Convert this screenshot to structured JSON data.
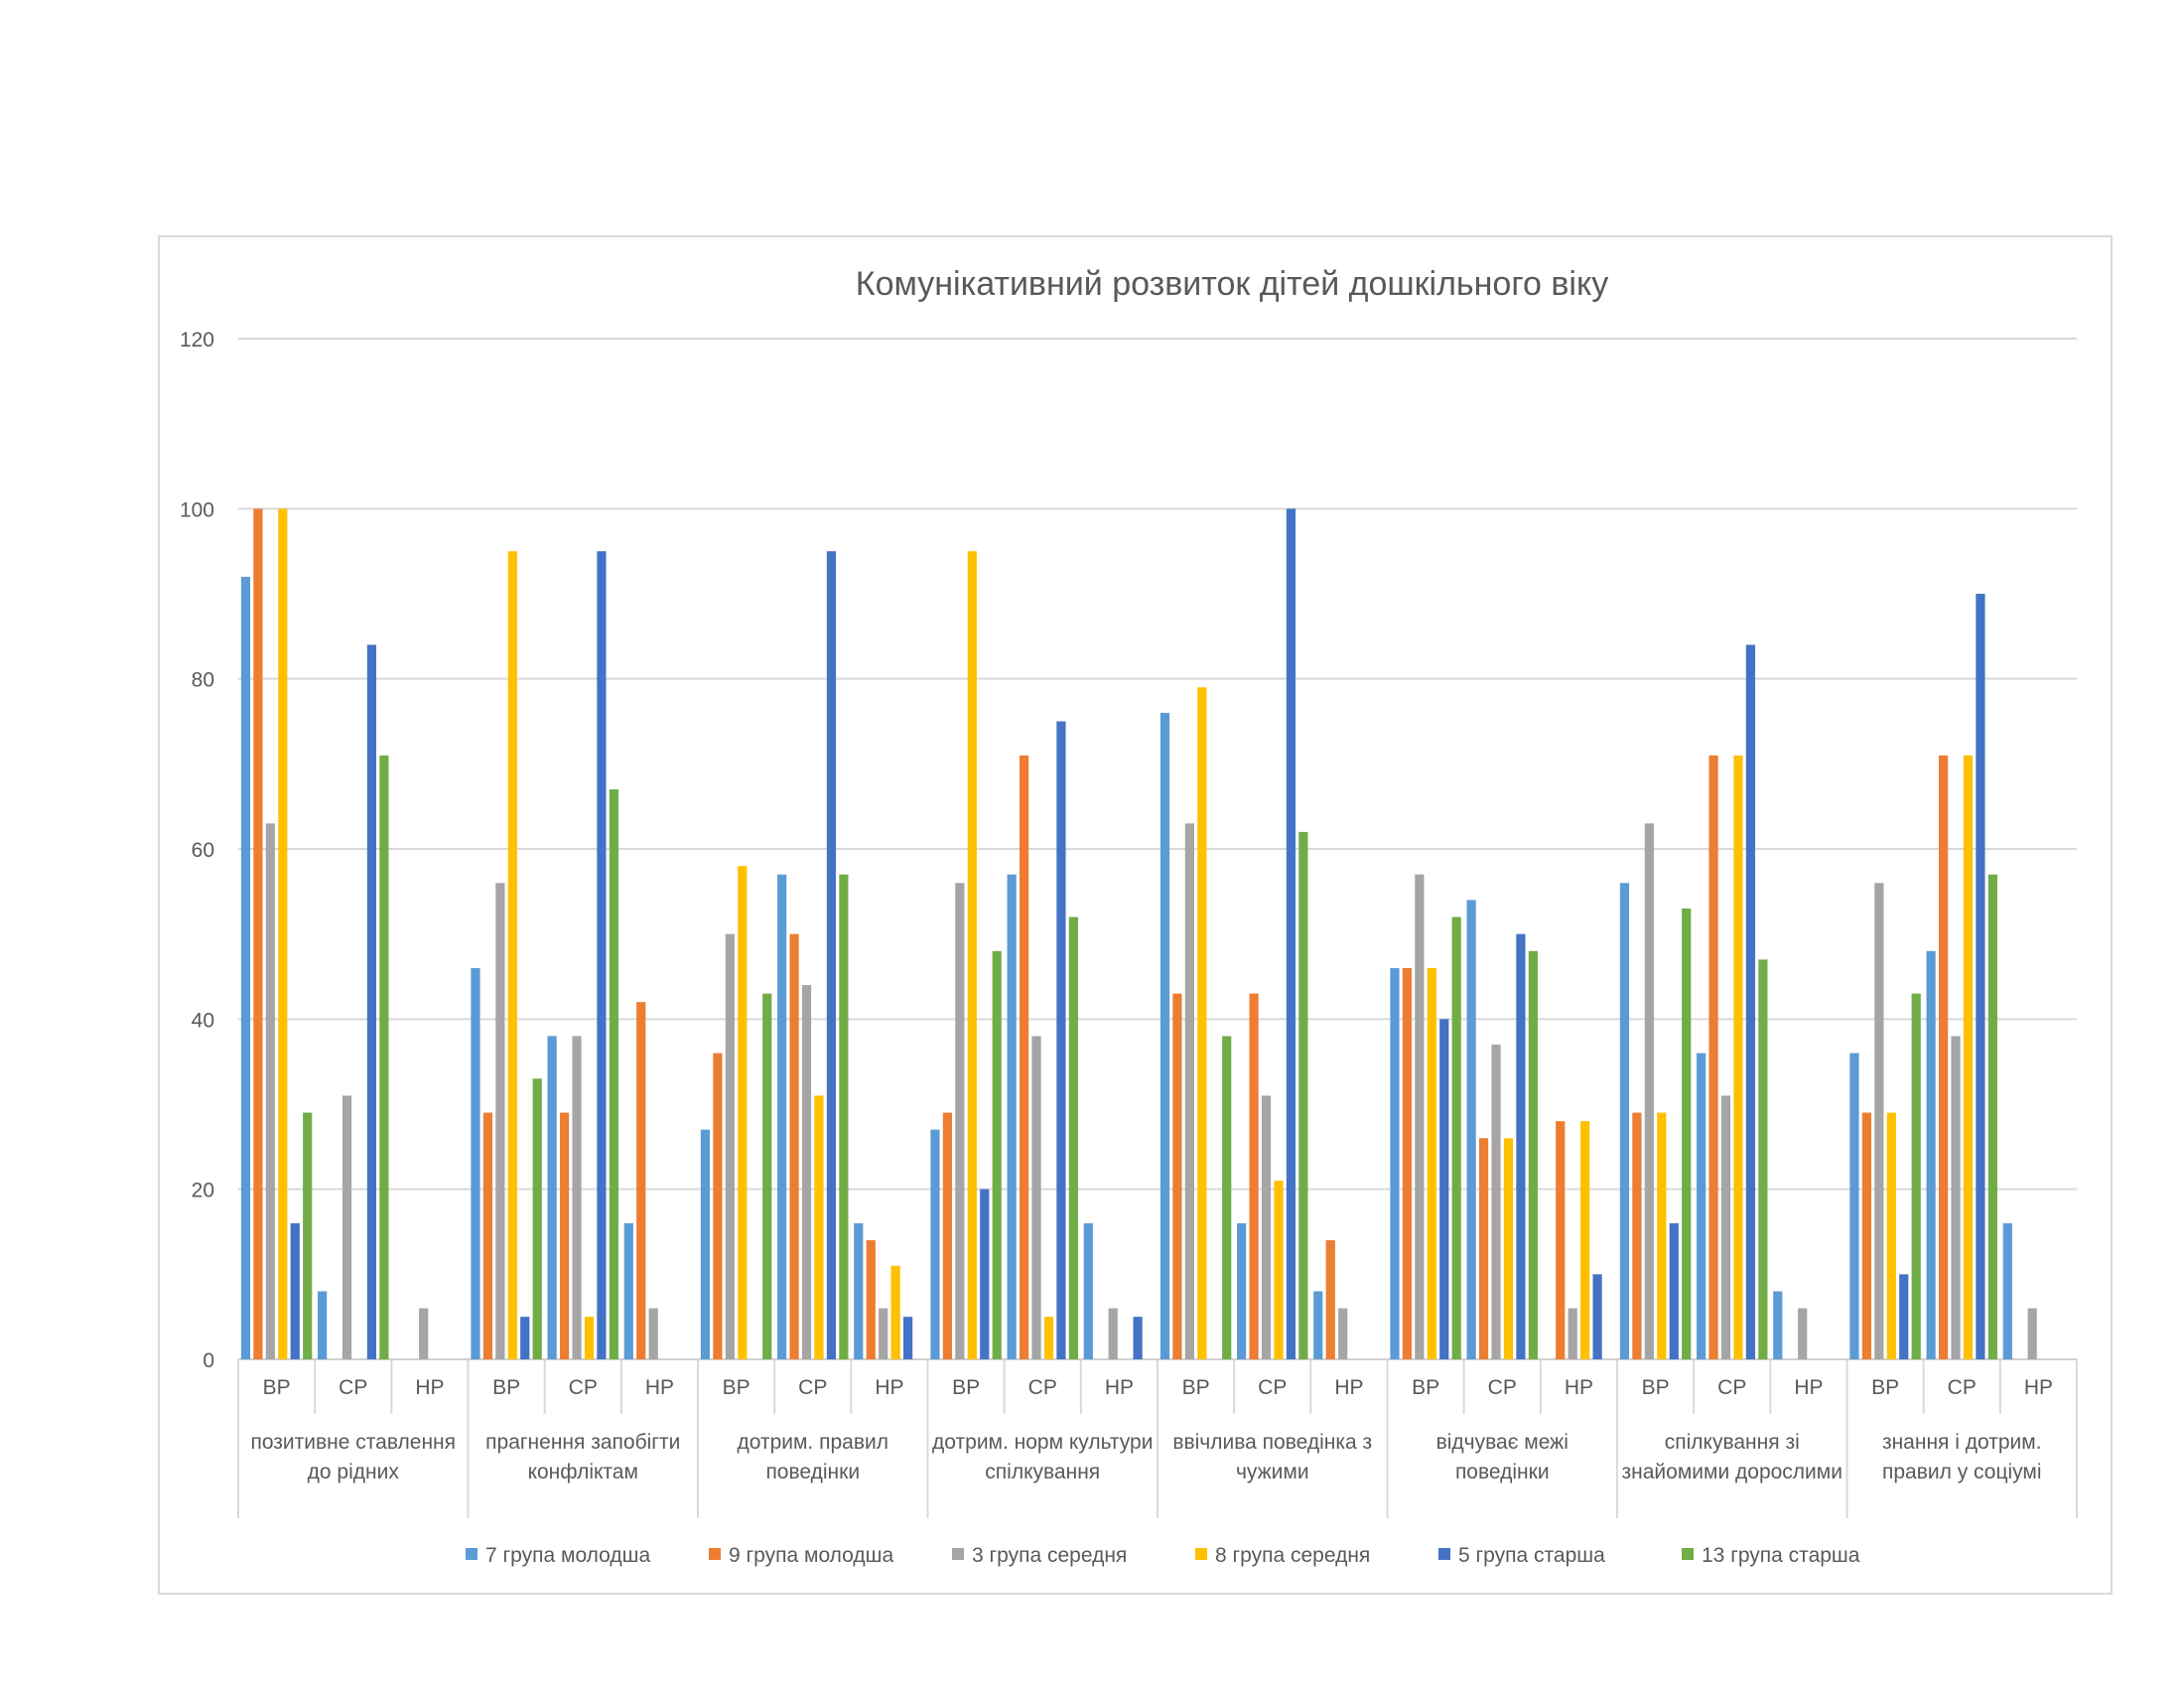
{
  "chart_data": {
    "type": "bar",
    "title": "Комунікативний розвиток дітей дошкільного віку",
    "xlabel": "",
    "ylabel": "",
    "ylim": [
      0,
      120
    ],
    "yticks": [
      0,
      20,
      40,
      60,
      80,
      100,
      120
    ],
    "grid": true,
    "legend_position": "bottom",
    "groups": [
      "позитивне ставлення до рідних",
      "прагнення запобігти конфліктам",
      "дотрим. правил поведінки",
      "дотрим. норм культури спілкування",
      "ввічлива поведінка з чужими",
      "відчуває межі поведінки",
      "спілкування зі знайомими дорослими",
      "знання і дотрим. правил у соціумі"
    ],
    "levels": [
      "ВР",
      "СР",
      "НР"
    ],
    "series": [
      {
        "name": "7 група молодша",
        "color": "#5B9BD5",
        "values": [
          92,
          8,
          0,
          46,
          38,
          16,
          27,
          57,
          16,
          27,
          57,
          16,
          76,
          16,
          8,
          46,
          54,
          0,
          56,
          36,
          8,
          36,
          48,
          16
        ]
      },
      {
        "name": "9 група молодша",
        "color": "#ED7D31",
        "values": [
          100,
          0,
          0,
          29,
          29,
          42,
          36,
          50,
          14,
          29,
          71,
          0,
          43,
          43,
          14,
          46,
          26,
          28,
          29,
          71,
          0,
          29,
          71,
          0
        ]
      },
      {
        "name": "3 група середня",
        "color": "#A5A5A5",
        "values": [
          63,
          31,
          6,
          56,
          38,
          6,
          50,
          44,
          6,
          56,
          38,
          6,
          63,
          31,
          6,
          57,
          37,
          6,
          63,
          31,
          6,
          56,
          38,
          6
        ]
      },
      {
        "name": "8 група середня",
        "color": "#FFC000",
        "values": [
          100,
          0,
          0,
          95,
          5,
          0,
          58,
          31,
          11,
          95,
          5,
          0,
          79,
          21,
          0,
          46,
          26,
          28,
          29,
          71,
          0,
          29,
          71,
          0
        ]
      },
      {
        "name": "5 група старша",
        "color": "#4472C4",
        "values": [
          16,
          84,
          0,
          5,
          95,
          0,
          0,
          95,
          5,
          20,
          75,
          5,
          0,
          100,
          0,
          40,
          50,
          10,
          16,
          84,
          0,
          10,
          90,
          0
        ]
      },
      {
        "name": "13 група старша",
        "color": "#70AD47",
        "values": [
          29,
          71,
          0,
          33,
          67,
          0,
          43,
          57,
          0,
          48,
          52,
          0,
          38,
          62,
          0,
          52,
          48,
          0,
          53,
          47,
          0,
          43,
          57,
          0
        ]
      }
    ]
  }
}
